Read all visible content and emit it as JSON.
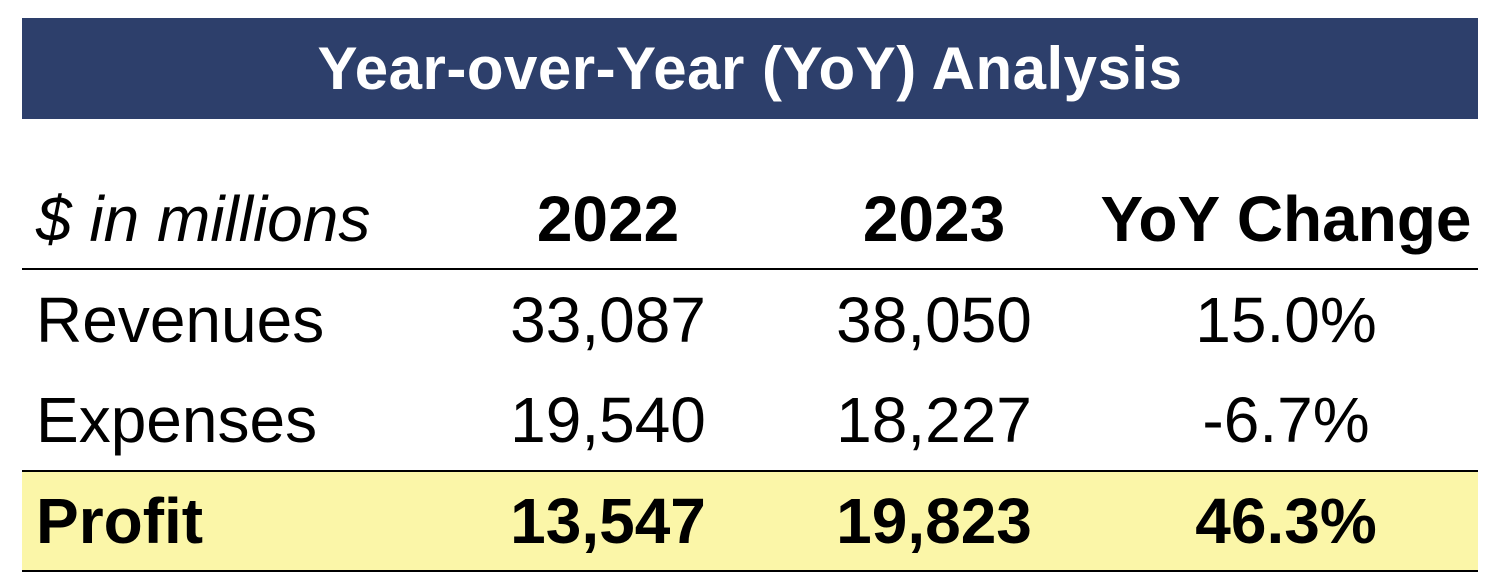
{
  "title": "Year-over-Year (YoY) Analysis",
  "colors": {
    "banner": "#2d3f6b",
    "banner_text": "#ffffff",
    "profit_highlight": "#fbf6a8"
  },
  "chart_data": {
    "type": "table",
    "title": "Year-over-Year (YoY) Analysis",
    "columns": [
      "$ in millions",
      "2022",
      "2023",
      "YoY Change"
    ],
    "rows": [
      {
        "label": "Revenues",
        "y2022": "33,087",
        "y2023": "38,050",
        "yoy": "15.0%"
      },
      {
        "label": "Expenses",
        "y2022": "19,540",
        "y2023": "18,227",
        "yoy": "-6.7%"
      },
      {
        "label": "Profit",
        "y2022": "13,547",
        "y2023": "19,823",
        "yoy": "46.3%"
      }
    ]
  }
}
